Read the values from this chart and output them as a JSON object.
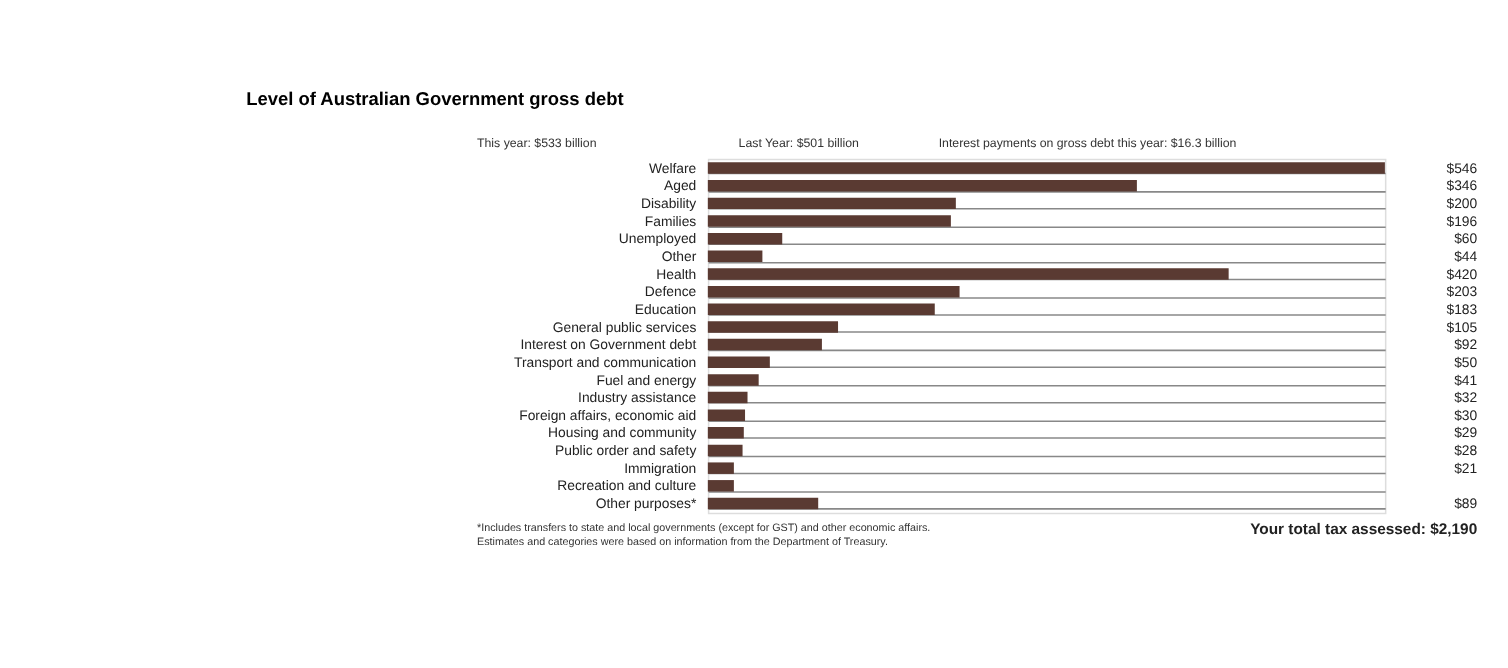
{
  "chart_data": {
    "type": "bar",
    "orientation": "horizontal",
    "title": "Level of Australian Government gross debt",
    "annotations": [
      "This year: $533 billion",
      "Last Year: $501 billion",
      "Interest payments on gross debt this year: $16.3 billion",
      "*Includes transfers to state and local governments (except for GST) and other economic affairs. Estimates and categories were based on information from the Department of Treasury.",
      "Your total tax assessed:   $2,190"
    ],
    "categories": [
      "Welfare",
      "Aged",
      "Disability",
      "Families",
      "Unemployed",
      "Other",
      "Health",
      "Defence",
      "Education",
      "General public services",
      "Interest on Government debt",
      "Transport and communication",
      "Fuel and energy",
      "Industry assistance",
      "Foreign affairs, economic aid",
      "Housing and community",
      "Public order and safety",
      "Immigration",
      "Recreation and culture",
      "Other purposes*"
    ],
    "values": [
      546,
      346,
      200,
      196,
      60,
      44,
      420,
      203,
      183,
      105,
      92,
      50,
      41,
      32,
      30,
      29,
      28,
      21,
      21,
      89
    ],
    "value_labels": [
      "$546",
      "$346",
      "$200",
      "$196",
      "$60",
      "$44",
      "$420",
      "$203",
      "$183",
      "$105",
      "$92",
      "$50",
      "$41",
      "$32",
      "$30",
      "$29",
      "$28",
      "$21",
      null,
      "$89"
    ],
    "color": "#5a3a32",
    "grid": "y",
    "tick_labels": "y"
  }
}
